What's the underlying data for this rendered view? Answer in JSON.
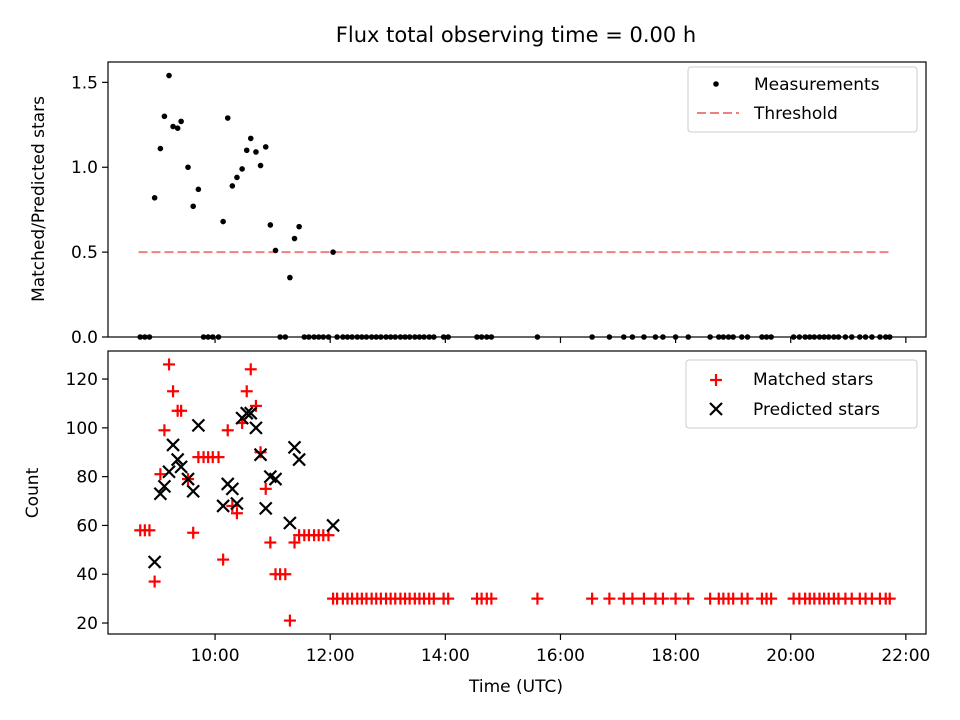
{
  "chart_data": {
    "type": "scatter",
    "title": "Flux total observing time = 0.00 h",
    "xlabel": "Time (UTC)",
    "x_unit": "hours",
    "x_ticks": [
      10,
      12,
      14,
      16,
      18,
      20,
      22
    ],
    "x_tick_labels": [
      "10:00",
      "12:00",
      "14:00",
      "16:00",
      "18:00",
      "20:00",
      "22:00"
    ],
    "xlim": [
      8.14,
      22.35
    ],
    "top_panel": {
      "ylabel": "Matched/Predicted stars",
      "ylim": [
        0,
        1.62
      ],
      "y_ticks": [
        0,
        0.5,
        1.0,
        1.5
      ],
      "y_tick_labels": [
        "0.0",
        "0.5",
        "1.0",
        "1.5"
      ],
      "legend_position": "top-right",
      "threshold": {
        "name": "Threshold",
        "value": 0.5,
        "x_range": [
          8.67,
          21.75
        ],
        "color": "#f08080"
      },
      "measurements": {
        "name": "Measurements",
        "color": "#000000",
        "points": [
          [
            8.7,
            0
          ],
          [
            8.78,
            0
          ],
          [
            8.86,
            0
          ],
          [
            8.95,
            0.82
          ],
          [
            9.05,
            1.11
          ],
          [
            9.12,
            1.3
          ],
          [
            9.2,
            1.54
          ],
          [
            9.27,
            1.24
          ],
          [
            9.35,
            1.23
          ],
          [
            9.41,
            1.27
          ],
          [
            9.53,
            1.0
          ],
          [
            9.62,
            0.77
          ],
          [
            9.71,
            0.87
          ],
          [
            9.8,
            0
          ],
          [
            9.88,
            0
          ],
          [
            9.96,
            0
          ],
          [
            10.06,
            0
          ],
          [
            10.14,
            0.68
          ],
          [
            10.22,
            1.29
          ],
          [
            10.3,
            0.89
          ],
          [
            10.38,
            0.94
          ],
          [
            10.47,
            0.99
          ],
          [
            10.55,
            1.1
          ],
          [
            10.62,
            1.17
          ],
          [
            10.71,
            1.09
          ],
          [
            10.79,
            1.01
          ],
          [
            10.88,
            1.12
          ],
          [
            10.96,
            0.66
          ],
          [
            11.05,
            0.51
          ],
          [
            11.13,
            0
          ],
          [
            11.22,
            0
          ],
          [
            11.3,
            0.35
          ],
          [
            11.38,
            0.58
          ],
          [
            11.46,
            0.65
          ],
          [
            11.55,
            0
          ],
          [
            11.63,
            0
          ],
          [
            11.72,
            0
          ],
          [
            11.8,
            0
          ],
          [
            11.88,
            0
          ],
          [
            11.97,
            0
          ],
          [
            12.05,
            0.5
          ],
          [
            12.12,
            0
          ],
          [
            12.22,
            0
          ],
          [
            12.3,
            0
          ],
          [
            12.38,
            0
          ],
          [
            12.47,
            0
          ],
          [
            12.55,
            0
          ],
          [
            12.63,
            0
          ],
          [
            12.72,
            0
          ],
          [
            12.8,
            0
          ],
          [
            12.88,
            0
          ],
          [
            12.97,
            0
          ],
          [
            13.05,
            0
          ],
          [
            13.13,
            0
          ],
          [
            13.22,
            0
          ],
          [
            13.3,
            0
          ],
          [
            13.38,
            0
          ],
          [
            13.47,
            0
          ],
          [
            13.55,
            0
          ],
          [
            13.63,
            0
          ],
          [
            13.72,
            0
          ],
          [
            13.8,
            0
          ],
          [
            13.97,
            0
          ],
          [
            14.05,
            0
          ],
          [
            14.55,
            0
          ],
          [
            14.63,
            0
          ],
          [
            14.72,
            0
          ],
          [
            14.8,
            0
          ],
          [
            15.6,
            0
          ],
          [
            16.55,
            0
          ],
          [
            16.85,
            0
          ],
          [
            17.1,
            0
          ],
          [
            17.25,
            0
          ],
          [
            17.45,
            0
          ],
          [
            17.65,
            0
          ],
          [
            17.78,
            0
          ],
          [
            18.0,
            0
          ],
          [
            18.22,
            0
          ],
          [
            18.6,
            0
          ],
          [
            18.75,
            0
          ],
          [
            18.83,
            0
          ],
          [
            18.92,
            0
          ],
          [
            19.0,
            0
          ],
          [
            19.15,
            0
          ],
          [
            19.25,
            0
          ],
          [
            19.5,
            0
          ],
          [
            19.58,
            0
          ],
          [
            19.66,
            0
          ],
          [
            20.05,
            0
          ],
          [
            20.15,
            0
          ],
          [
            20.25,
            0
          ],
          [
            20.33,
            0
          ],
          [
            20.41,
            0
          ],
          [
            20.5,
            0
          ],
          [
            20.58,
            0
          ],
          [
            20.66,
            0
          ],
          [
            20.75,
            0
          ],
          [
            20.83,
            0
          ],
          [
            20.95,
            0
          ],
          [
            21.06,
            0
          ],
          [
            21.2,
            0
          ],
          [
            21.3,
            0
          ],
          [
            21.41,
            0
          ],
          [
            21.55,
            0
          ],
          [
            21.65,
            0
          ],
          [
            21.72,
            0
          ]
        ]
      }
    },
    "bottom_panel": {
      "ylabel": "Count",
      "ylim": [
        15.5,
        131.5
      ],
      "y_ticks": [
        20,
        40,
        60,
        80,
        100,
        120
      ],
      "y_tick_labels": [
        "20",
        "40",
        "60",
        "80",
        "100",
        "120"
      ],
      "legend_position": "top-right",
      "matched": {
        "name": "Matched stars",
        "color": "#ff0000",
        "points": [
          [
            8.7,
            58
          ],
          [
            8.78,
            58
          ],
          [
            8.86,
            58
          ],
          [
            8.95,
            37
          ],
          [
            9.05,
            81
          ],
          [
            9.12,
            99
          ],
          [
            9.2,
            126
          ],
          [
            9.27,
            115
          ],
          [
            9.35,
            107
          ],
          [
            9.41,
            107
          ],
          [
            9.53,
            79
          ],
          [
            9.62,
            57
          ],
          [
            9.71,
            88
          ],
          [
            9.8,
            88
          ],
          [
            9.88,
            88
          ],
          [
            9.96,
            88
          ],
          [
            10.06,
            88
          ],
          [
            10.14,
            46
          ],
          [
            10.22,
            99
          ],
          [
            10.3,
            68
          ],
          [
            10.38,
            65
          ],
          [
            10.47,
            102
          ],
          [
            10.55,
            115
          ],
          [
            10.62,
            124
          ],
          [
            10.71,
            109
          ],
          [
            10.79,
            90
          ],
          [
            10.88,
            75
          ],
          [
            10.96,
            53
          ],
          [
            11.05,
            40
          ],
          [
            11.13,
            40
          ],
          [
            11.22,
            40
          ],
          [
            11.3,
            21
          ],
          [
            11.38,
            53
          ],
          [
            11.46,
            56
          ],
          [
            11.55,
            56
          ],
          [
            11.63,
            56
          ],
          [
            11.72,
            56
          ],
          [
            11.8,
            56
          ],
          [
            11.88,
            56
          ],
          [
            11.97,
            56
          ],
          [
            12.05,
            30
          ],
          [
            12.12,
            30
          ],
          [
            12.22,
            30
          ],
          [
            12.3,
            30
          ],
          [
            12.38,
            30
          ],
          [
            12.47,
            30
          ],
          [
            12.55,
            30
          ],
          [
            12.63,
            30
          ],
          [
            12.72,
            30
          ],
          [
            12.8,
            30
          ],
          [
            12.88,
            30
          ],
          [
            12.97,
            30
          ],
          [
            13.05,
            30
          ],
          [
            13.13,
            30
          ],
          [
            13.22,
            30
          ],
          [
            13.3,
            30
          ],
          [
            13.38,
            30
          ],
          [
            13.47,
            30
          ],
          [
            13.55,
            30
          ],
          [
            13.63,
            30
          ],
          [
            13.72,
            30
          ],
          [
            13.8,
            30
          ],
          [
            13.97,
            30
          ],
          [
            14.05,
            30
          ],
          [
            14.55,
            30
          ],
          [
            14.63,
            30
          ],
          [
            14.72,
            30
          ],
          [
            14.8,
            30
          ],
          [
            15.6,
            30
          ],
          [
            16.55,
            30
          ],
          [
            16.85,
            30
          ],
          [
            17.1,
            30
          ],
          [
            17.25,
            30
          ],
          [
            17.45,
            30
          ],
          [
            17.65,
            30
          ],
          [
            17.78,
            30
          ],
          [
            18.0,
            30
          ],
          [
            18.22,
            30
          ],
          [
            18.6,
            30
          ],
          [
            18.75,
            30
          ],
          [
            18.83,
            30
          ],
          [
            18.92,
            30
          ],
          [
            19.0,
            30
          ],
          [
            19.15,
            30
          ],
          [
            19.25,
            30
          ],
          [
            19.5,
            30
          ],
          [
            19.58,
            30
          ],
          [
            19.66,
            30
          ],
          [
            20.05,
            30
          ],
          [
            20.15,
            30
          ],
          [
            20.25,
            30
          ],
          [
            20.33,
            30
          ],
          [
            20.41,
            30
          ],
          [
            20.5,
            30
          ],
          [
            20.58,
            30
          ],
          [
            20.66,
            30
          ],
          [
            20.75,
            30
          ],
          [
            20.83,
            30
          ],
          [
            20.95,
            30
          ],
          [
            21.06,
            30
          ],
          [
            21.2,
            30
          ],
          [
            21.3,
            30
          ],
          [
            21.41,
            30
          ],
          [
            21.55,
            30
          ],
          [
            21.65,
            30
          ],
          [
            21.72,
            30
          ]
        ]
      },
      "predicted": {
        "name": "Predicted stars",
        "color": "#000000",
        "points": [
          [
            8.95,
            45
          ],
          [
            9.05,
            73
          ],
          [
            9.12,
            76
          ],
          [
            9.2,
            82
          ],
          [
            9.27,
            93
          ],
          [
            9.35,
            87
          ],
          [
            9.41,
            84
          ],
          [
            9.53,
            79
          ],
          [
            9.62,
            74
          ],
          [
            9.71,
            101
          ],
          [
            10.14,
            68
          ],
          [
            10.22,
            77
          ],
          [
            10.3,
            75
          ],
          [
            10.38,
            69
          ],
          [
            10.47,
            104
          ],
          [
            10.55,
            106
          ],
          [
            10.62,
            106
          ],
          [
            10.71,
            100
          ],
          [
            10.79,
            89
          ],
          [
            10.88,
            67
          ],
          [
            10.96,
            80
          ],
          [
            11.05,
            79
          ],
          [
            11.3,
            61
          ],
          [
            11.38,
            92
          ],
          [
            11.46,
            87
          ],
          [
            12.05,
            60
          ]
        ]
      }
    }
  }
}
